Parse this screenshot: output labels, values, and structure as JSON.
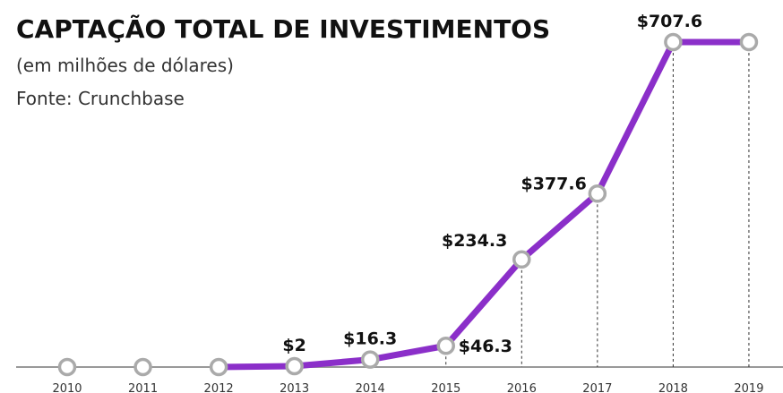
{
  "chart_data": {
    "type": "line",
    "title": "CAPTAÇÃO TOTAL DE INVESTIMENTOS",
    "subtitle": "(em milhões de dólares)",
    "source": "Fonte: Crunchbase",
    "categories": [
      "2010",
      "2011",
      "2012",
      "2013",
      "2014",
      "2015",
      "2016",
      "2017",
      "2018",
      "2019"
    ],
    "series": [
      {
        "name": "Captação",
        "color": "#8b2fc9",
        "values": [
          0,
          0,
          0,
          2,
          16.3,
          46.3,
          234.3,
          377.6,
          707.6,
          707.6
        ],
        "value_labels": [
          null,
          null,
          null,
          "$2",
          "$16.3",
          "$46.3",
          "$234.3",
          "$377.6",
          "$707.6",
          null
        ]
      }
    ]
  }
}
